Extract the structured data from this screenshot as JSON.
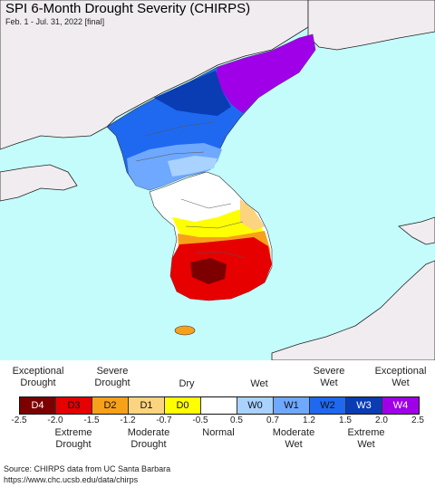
{
  "title": "SPI 6-Month Drought Severity (CHIRPS)",
  "subtitle": "Feb. 1 - Jul. 31, 2022 [final]",
  "colors": {
    "ocean": "#c4fcfc",
    "land_other": "#f0ecef",
    "coast_line": "#222222"
  },
  "legend": {
    "top_labels": [
      {
        "text1": "Exceptional",
        "text2": "Drought"
      },
      {
        "text1": "Severe",
        "text2": "Drought"
      },
      {
        "text1": "Dry",
        "text2": ""
      },
      {
        "text1": "Wet",
        "text2": ""
      },
      {
        "text1": "Severe",
        "text2": "Wet"
      },
      {
        "text1": "Exceptional",
        "text2": "Wet"
      }
    ],
    "boxes": [
      {
        "code": "D4",
        "color": "#7c0000"
      },
      {
        "code": "D3",
        "color": "#e60000"
      },
      {
        "code": "D2",
        "color": "#f7a11b"
      },
      {
        "code": "D1",
        "color": "#fcd37f"
      },
      {
        "code": "D0",
        "color": "#ffff00"
      },
      {
        "code": "",
        "color": "#ffffff"
      },
      {
        "code": "W0",
        "color": "#aad2ff"
      },
      {
        "code": "W1",
        "color": "#6fa8ff"
      },
      {
        "code": "W2",
        "color": "#1e69f0"
      },
      {
        "code": "W3",
        "color": "#0a3cb4"
      },
      {
        "code": "W4",
        "color": "#a000e8"
      }
    ],
    "ticks": [
      "-2.5",
      "-2.0",
      "-1.5",
      "-1.2",
      "-0.7",
      "-0.5",
      "0.5",
      "0.7",
      "1.2",
      "1.5",
      "2.0",
      "2.5"
    ],
    "bottom_labels": [
      {
        "text1": "Extreme",
        "text2": "Drought"
      },
      {
        "text1": "Moderate",
        "text2": "Drought"
      },
      {
        "text1": "Normal",
        "text2": ""
      },
      {
        "text1": "Moderate",
        "text2": "Wet"
      },
      {
        "text1": "Extreme",
        "text2": "Wet"
      }
    ]
  },
  "source": {
    "line1": "Source: CHIRPS data from UC Santa Barbara",
    "line2": "https://www.chc.ucsb.edu/data/chirps"
  }
}
